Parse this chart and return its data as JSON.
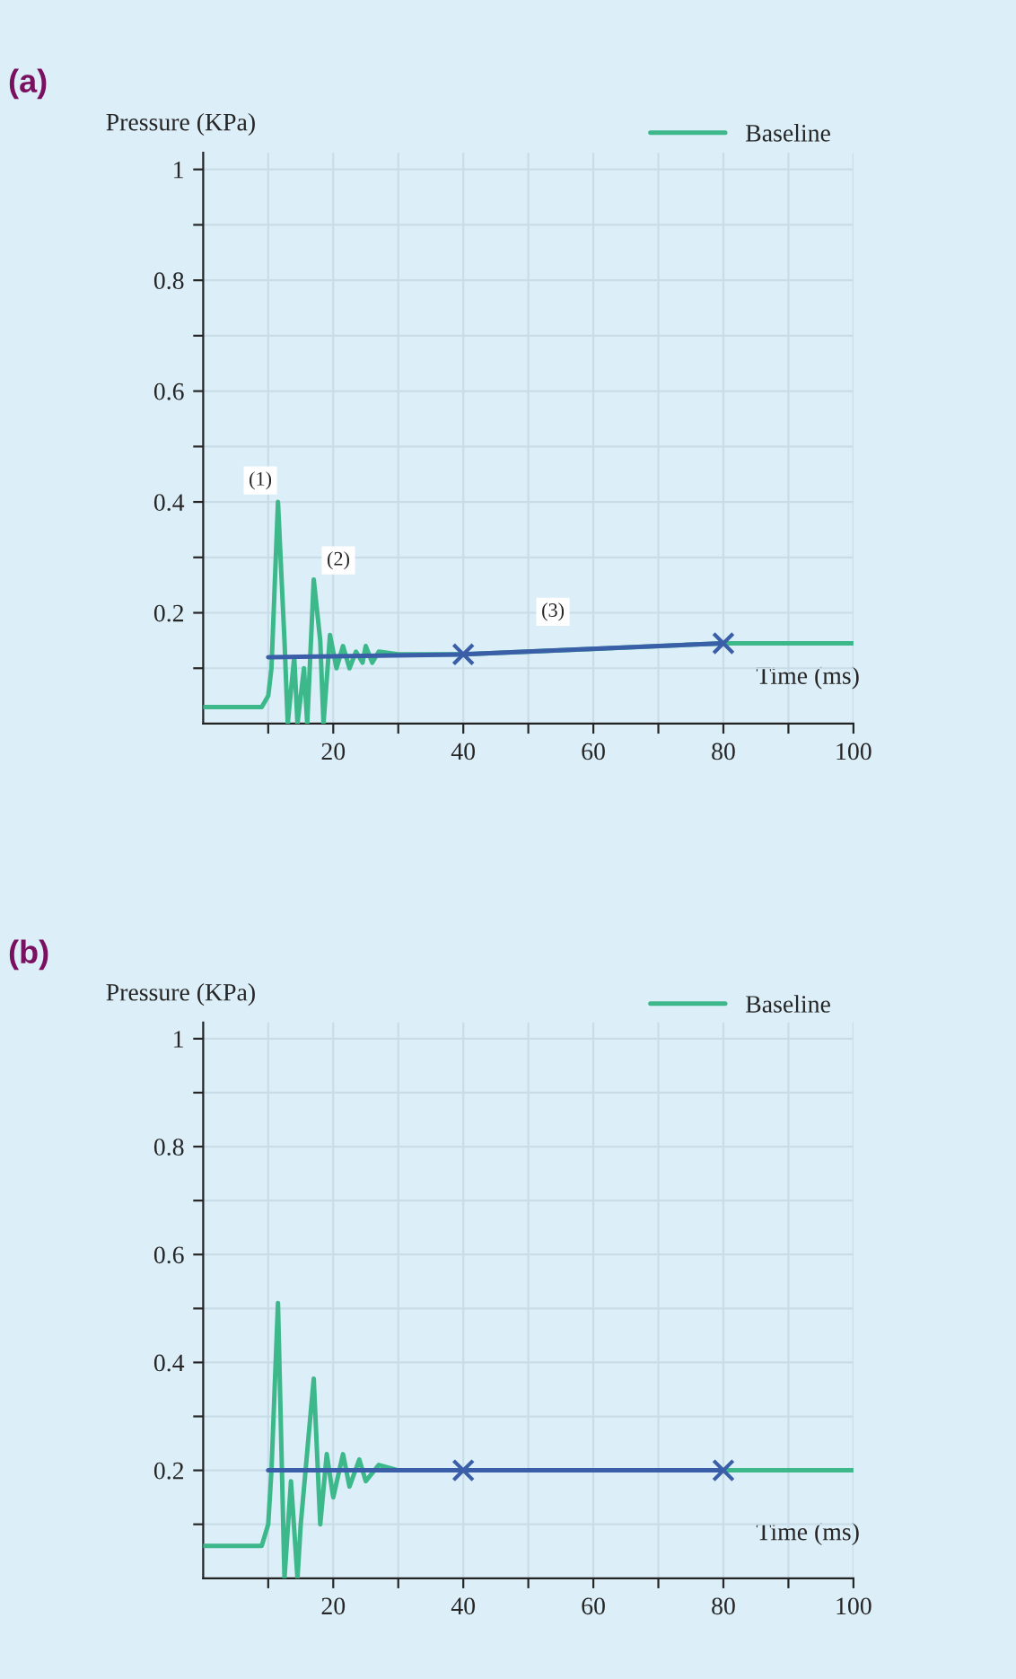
{
  "chart_data": [
    {
      "type": "line",
      "title": "(a)",
      "xlabel": "Time (ms)",
      "ylabel": "Pressure (KPa)",
      "xlim": [
        0,
        100
      ],
      "ylim": [
        0,
        1.03
      ],
      "xticks": [
        {
          "value": 10,
          "label": null
        },
        20,
        {
          "value": 30,
          "label": null
        },
        40,
        {
          "value": 50,
          "label": null
        },
        60,
        {
          "value": 70,
          "label": null
        },
        80,
        {
          "value": 90,
          "label": null
        },
        100
      ],
      "yticks": [
        {
          "value": 0.1,
          "label": null
        },
        0.2,
        {
          "value": 0.3,
          "label": null
        },
        0.4,
        {
          "value": 0.5,
          "label": null
        },
        0.6,
        {
          "value": 0.7,
          "label": null
        },
        0.8,
        {
          "value": 0.9,
          "label": null
        },
        1
      ],
      "grid": true,
      "legend": "top right",
      "series": [
        {
          "name": "Baseline",
          "color": "#3cb88a",
          "x": [
            0,
            9,
            10,
            10.5,
            11.5,
            12.5,
            13,
            14,
            14.5,
            15.5,
            16,
            17,
            18,
            18.5,
            19.5,
            20.5,
            21.5,
            22.5,
            23.5,
            24.5,
            25,
            26,
            27,
            30,
            40,
            60,
            80,
            100
          ],
          "values": [
            0.03,
            0.03,
            0.05,
            0.1,
            0.4,
            0.15,
            0,
            0.12,
            0,
            0.1,
            0,
            0.26,
            0.15,
            0,
            0.16,
            0.1,
            0.14,
            0.1,
            0.13,
            0.11,
            0.14,
            0.11,
            0.13,
            0.125,
            0.125,
            0.135,
            0.145,
            0.145
          ]
        },
        {
          "type": "line",
          "color": "#3a5fa8",
          "x": [
            10,
            40,
            80
          ],
          "values": [
            0.12,
            0.125,
            0.145
          ]
        },
        {
          "type": "scatter",
          "marker": "cross",
          "color": "#3a5fa8",
          "x": [
            40,
            80
          ],
          "values": [
            0.125,
            0.145
          ]
        }
      ],
      "annotations": [
        "(1)",
        "(2)",
        "(3)"
      ]
    },
    {
      "type": "line",
      "title": "(b)",
      "xlabel": "Time (ms)",
      "ylabel": "Pressure (KPa)",
      "xlim": [
        0,
        100
      ],
      "ylim": [
        0,
        1.03
      ],
      "xticks": [
        {
          "value": 10,
          "label": null
        },
        20,
        {
          "value": 30,
          "label": null
        },
        40,
        {
          "value": 50,
          "label": null
        },
        60,
        {
          "value": 70,
          "label": null
        },
        80,
        {
          "value": 90,
          "label": null
        },
        100
      ],
      "yticks": [
        {
          "value": 0.1,
          "label": null
        },
        0.2,
        {
          "value": 0.3,
          "label": null
        },
        0.4,
        {
          "value": 0.5,
          "label": null
        },
        0.6,
        {
          "value": 0.7,
          "label": null
        },
        0.8,
        {
          "value": 0.9,
          "label": null
        },
        1
      ],
      "grid": true,
      "legend": "top right",
      "series": [
        {
          "name": "Baseline",
          "color": "#3cb88a",
          "x": [
            0,
            9,
            10,
            10.5,
            11.5,
            12.5,
            13.5,
            14.5,
            15,
            17,
            18,
            19,
            20,
            21.5,
            22.5,
            24,
            25,
            27,
            30,
            40,
            60,
            80,
            100
          ],
          "values": [
            0.06,
            0.06,
            0.1,
            0.2,
            0.51,
            0,
            0.18,
            0,
            0.1,
            0.37,
            0.1,
            0.23,
            0.15,
            0.23,
            0.17,
            0.22,
            0.18,
            0.21,
            0.2,
            0.2,
            0.2,
            0.2,
            0.2
          ]
        },
        {
          "type": "line",
          "color": "#3a5fa8",
          "x": [
            10,
            40,
            80
          ],
          "values": [
            0.2,
            0.2,
            0.2
          ]
        },
        {
          "type": "scatter",
          "marker": "cross",
          "color": "#3a5fa8",
          "x": [
            40,
            80
          ],
          "values": [
            0.2,
            0.2
          ]
        }
      ]
    }
  ]
}
